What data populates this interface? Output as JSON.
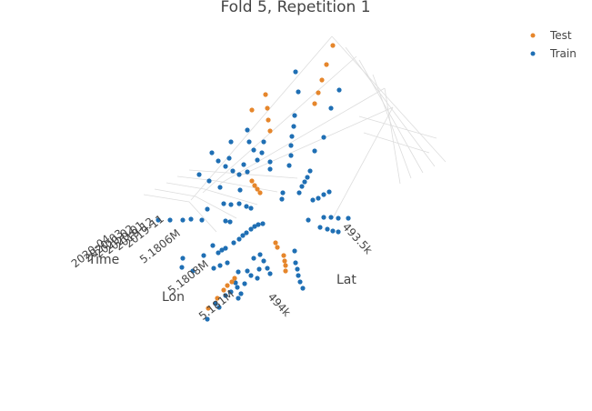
{
  "chart_data": {
    "type": "scatter",
    "title": "Fold 5, Repetition 1",
    "axes": {
      "x": {
        "label": "Lat",
        "ticks": [
          "493.5k",
          "494k"
        ]
      },
      "y": {
        "label": "Lon",
        "ticks": [
          "5.1806M",
          "5.1808M",
          "5.181M"
        ]
      },
      "z": {
        "label": "Time",
        "ticks": [
          "2020-04",
          "2020-03",
          "2020-02",
          "2020-01",
          "2019-12",
          "2019-11"
        ]
      }
    },
    "legend": {
      "placement": "top-right"
    },
    "colors": {
      "Test": "#e6862b",
      "Train": "#1f6fb4",
      "grid": "#dddddd",
      "text": "#444444"
    },
    "series": [
      {
        "name": "Test",
        "points": [
          [
            366,
            50
          ],
          [
            359,
            71
          ],
          [
            354,
            88
          ],
          [
            350,
            102
          ],
          [
            346,
            114
          ],
          [
            292,
            104
          ],
          [
            294,
            119
          ],
          [
            295,
            132
          ],
          [
            297,
            144
          ],
          [
            277,
            121
          ],
          [
            277,
            199
          ],
          [
            280,
            204
          ],
          [
            283,
            208
          ],
          [
            286,
            212
          ],
          [
            303,
            267
          ],
          [
            305,
            272
          ],
          [
            312,
            281
          ],
          [
            313,
            287
          ],
          [
            314,
            292
          ],
          [
            314,
            298
          ],
          [
            258,
            306
          ],
          [
            255,
            310
          ],
          [
            250,
            314
          ],
          [
            246,
            319
          ],
          [
            239,
            328
          ],
          [
            229,
            339
          ]
        ]
      },
      {
        "name": "Train",
        "points": [
          [
            373,
            99
          ],
          [
            364,
            119
          ],
          [
            356,
            151
          ],
          [
            346,
            166
          ],
          [
            325,
            79
          ],
          [
            328,
            101
          ],
          [
            324,
            127
          ],
          [
            323,
            139
          ],
          [
            321,
            150
          ],
          [
            320,
            160
          ],
          [
            320,
            171
          ],
          [
            318,
            182
          ],
          [
            272,
            143
          ],
          [
            274,
            156
          ],
          [
            290,
            156
          ],
          [
            254,
            156
          ],
          [
            279,
            165
          ],
          [
            283,
            176
          ],
          [
            288,
            168
          ],
          [
            297,
            178
          ],
          [
            297,
            186
          ],
          [
            233,
            168
          ],
          [
            240,
            177
          ],
          [
            252,
            174
          ],
          [
            268,
            181
          ],
          [
            272,
            189
          ],
          [
            248,
            183
          ],
          [
            256,
            188
          ],
          [
            263,
            192
          ],
          [
            219,
            192
          ],
          [
            230,
            199
          ],
          [
            242,
            206
          ],
          [
            264,
            209
          ],
          [
            341,
            188
          ],
          [
            338,
            195
          ],
          [
            335,
            200
          ],
          [
            332,
            205
          ],
          [
            329,
            212
          ],
          [
            311,
            212
          ],
          [
            310,
            219
          ],
          [
            362,
            211
          ],
          [
            356,
            214
          ],
          [
            350,
            218
          ],
          [
            344,
            220
          ],
          [
            246,
            224
          ],
          [
            254,
            225
          ],
          [
            263,
            224
          ],
          [
            271,
            227
          ],
          [
            276,
            229
          ],
          [
            248,
            243
          ],
          [
            253,
            244
          ],
          [
            210,
            241
          ],
          [
            222,
            242
          ],
          [
            174,
            242
          ],
          [
            187,
            242
          ],
          [
            201,
            242
          ],
          [
            228,
            230
          ],
          [
            289,
            246
          ],
          [
            284,
            247
          ],
          [
            280,
            249
          ],
          [
            276,
            252
          ],
          [
            271,
            256
          ],
          [
            267,
            259
          ],
          [
            263,
            263
          ],
          [
            257,
            267
          ],
          [
            248,
            273
          ],
          [
            244,
            275
          ],
          [
            234,
            270
          ],
          [
            356,
            239
          ],
          [
            364,
            239
          ],
          [
            372,
            240
          ],
          [
            383,
            240
          ],
          [
            352,
            250
          ],
          [
            360,
            252
          ],
          [
            366,
            254
          ],
          [
            372,
            255
          ],
          [
            339,
            242
          ],
          [
            201,
            284
          ],
          [
            200,
            294
          ],
          [
            212,
            298
          ],
          [
            240,
            278
          ],
          [
            224,
            281
          ],
          [
            235,
            295
          ],
          [
            242,
            292
          ],
          [
            250,
            289
          ],
          [
            286,
            280
          ],
          [
            279,
            284
          ],
          [
            290,
            287
          ],
          [
            294,
            295
          ],
          [
            285,
            296
          ],
          [
            283,
            306
          ],
          [
            297,
            301
          ],
          [
            262,
            299
          ],
          [
            272,
            298
          ],
          [
            276,
            303
          ],
          [
            259,
            311
          ],
          [
            269,
            312
          ],
          [
            261,
            316
          ],
          [
            265,
            323
          ],
          [
            254,
            321
          ],
          [
            248,
            325
          ],
          [
            262,
            328
          ],
          [
            237,
            334
          ],
          [
            241,
            338
          ],
          [
            228,
            351
          ],
          [
            324,
            276
          ],
          [
            325,
            289
          ],
          [
            327,
            296
          ],
          [
            328,
            303
          ],
          [
            330,
            310
          ],
          [
            333,
            317
          ]
        ]
      }
    ]
  }
}
